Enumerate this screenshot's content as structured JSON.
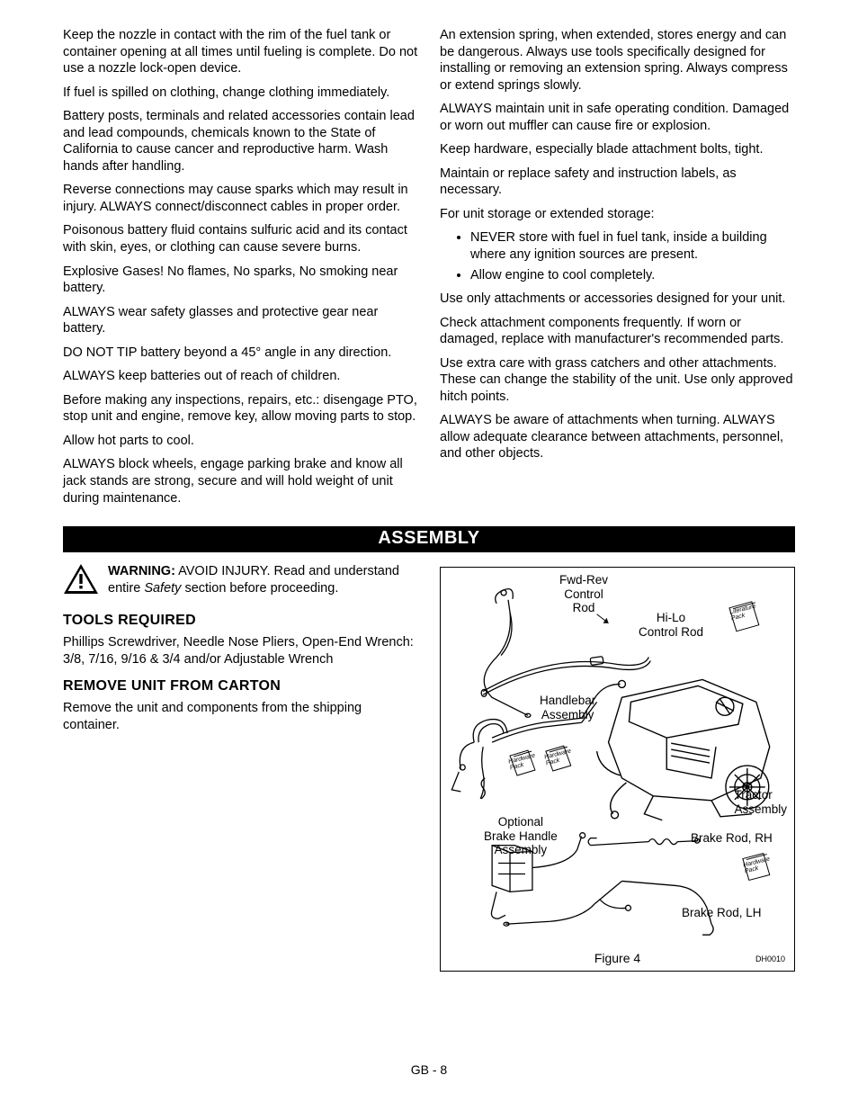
{
  "top": {
    "leftParas": [
      "Keep the nozzle in contact with the rim of the fuel tank or container opening at all times until fueling is complete. Do not use a nozzle lock-open device.",
      "If fuel is spilled on clothing, change clothing immediately.",
      "Battery posts, terminals and related accessories contain lead and lead compounds, chemicals known to the State of California to cause cancer and reproductive harm. Wash hands after handling.",
      "Reverse connections may cause sparks which may result in injury. ALWAYS connect/disconnect cables in proper order.",
      "Poisonous battery fluid contains sulfuric acid and its contact with skin, eyes, or clothing can cause severe burns.",
      "Explosive Gases! No flames, No sparks, No smoking near battery.",
      "ALWAYS wear safety glasses and protective gear near battery.",
      "DO NOT TIP battery beyond a 45° angle in any direction.",
      "ALWAYS keep batteries out of reach of children.",
      "Before making any inspections, repairs, etc.: disengage PTO, stop unit and engine, remove key, allow moving parts to stop.",
      "Allow hot parts to cool.",
      "ALWAYS block wheels, engage parking brake and know all jack stands are strong, secure and will hold weight of unit during maintenance."
    ],
    "rightParasA": [
      "An extension spring, when extended, stores energy and can be dangerous. Always use tools specifically designed for installing or removing an extension spring. Always compress or extend springs slowly.",
      "ALWAYS maintain unit in safe operating condition. Damaged or worn out muffler can cause fire or explosion.",
      "Keep hardware, especially blade attachment bolts, tight.",
      "Maintain or replace safety and instruction labels, as necessary.",
      "For unit storage or extended storage:"
    ],
    "rightBullets": [
      "NEVER store with fuel in fuel tank, inside a building where any ignition sources are present.",
      "Allow engine to cool completely."
    ],
    "rightParasB": [
      "Use only attachments or accessories designed for your unit.",
      "Check attachment components frequently. If worn or damaged, replace with manufacturer's recommended parts.",
      "Use extra care with grass catchers and other attachments. These can change the stability of the unit. Use only approved hitch points.",
      "ALWAYS be aware of attachments when turning. ALWAYS allow adequate clearance between attachments, personnel, and other objects."
    ]
  },
  "banner": "ASSEMBLY",
  "warning": {
    "label": "WARNING:",
    "textA": " AVOID INJURY. Read and understand entire ",
    "italic": "Safety",
    "textB": " section before proceeding."
  },
  "tools": {
    "head": "TOOLS REQUIRED",
    "body": "Phillips Screwdriver, Needle Nose Pliers, Open-End Wrench: 3/8, 7/16, 9/16 & 3/4 and/or Adjustable Wrench"
  },
  "remove": {
    "head": "REMOVE UNIT FROM CARTON",
    "body": "Remove the unit and components from the shipping container."
  },
  "figure": {
    "caption": "Figure 4",
    "code": "DH0010",
    "labels": {
      "fwdrev": "Fwd-Rev\nControl\nRod",
      "hilo": "Hi-Lo\nControl Rod",
      "handlebar": "Handlebar\nAssembly",
      "tractor": "Tractor\nAssembly",
      "optbrake": "Optional\nBrake Handle\nAssembly",
      "brakeRH": "Brake Rod, RH",
      "brakeLH": "Brake Rod, LH",
      "litpack": "Literature\nPack",
      "hwpack": "Hardware\nPack"
    }
  },
  "pageNum": "GB - 8"
}
